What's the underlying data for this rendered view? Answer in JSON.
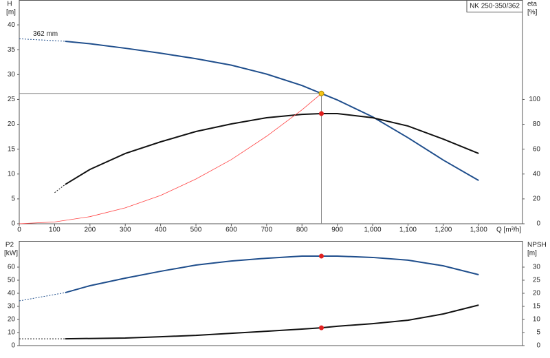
{
  "chart_data": [
    {
      "type": "line",
      "label_box": "NK 250-350/362",
      "annotation": "362 mm",
      "y_label": "H",
      "y_unit": "[m]",
      "y2_label": "eta",
      "y2_unit": "[%]",
      "x_label": "Q [m³/h]",
      "xlim": [
        0,
        1424
      ],
      "xticks": [
        0,
        100,
        200,
        300,
        400,
        500,
        600,
        700,
        800,
        900,
        {
          "value": 1000,
          "label": "1,000"
        },
        {
          "value": 1100,
          "label": "1,100"
        },
        {
          "value": 1200,
          "label": "1,200"
        },
        {
          "value": 1300,
          "label": "1,300"
        }
      ],
      "ylim": [
        0,
        45
      ],
      "yticks": [
        0,
        5,
        10,
        15,
        20,
        25,
        30,
        35,
        40
      ],
      "y2lim": [
        0,
        180
      ],
      "y2ticks": [
        0,
        20,
        40,
        60,
        80,
        100
      ],
      "series": [
        {
          "color": "#1f4e8c",
          "style": "dashed",
          "x": [
            0,
            130
          ],
          "values": [
            37.2,
            36.7
          ]
        },
        {
          "color": "#1f4e8c",
          "style": "solid",
          "x": [
            130,
            200,
            300,
            400,
            500,
            600,
            700,
            800,
            855,
            900,
            1000,
            1100,
            1200,
            1300
          ],
          "values": [
            36.7,
            36.2,
            35.3,
            34.3,
            33.2,
            31.9,
            30.1,
            27.8,
            26.2,
            24.9,
            21.5,
            17.3,
            12.8,
            8.7
          ]
        },
        {
          "color": "#111111",
          "style": "dashed",
          "axis": "y2",
          "x": [
            100,
            130
          ],
          "values": [
            25,
            31.6
          ]
        },
        {
          "color": "#111111",
          "style": "solid",
          "axis": "y2",
          "x": [
            130,
            200,
            300,
            400,
            500,
            600,
            700,
            800,
            855,
            900,
            1000,
            1100,
            1200,
            1300
          ],
          "values": [
            31.6,
            43.7,
            56.5,
            65.9,
            74.2,
            80.3,
            85.3,
            88,
            88.6,
            88.6,
            85.3,
            78.6,
            68.1,
            56.5
          ]
        },
        {
          "color": "#ff4040",
          "style": "thin",
          "x": [
            0,
            100,
            200,
            300,
            400,
            500,
            600,
            700,
            800,
            855
          ],
          "values": [
            0,
            0.36,
            1.43,
            3.2,
            5.7,
            9,
            12.9,
            17.6,
            22.9,
            26.2
          ]
        }
      ],
      "markers": [
        {
          "x": 855,
          "y": 26.2,
          "color": "#f5c518"
        },
        {
          "x": 855,
          "y": 88.6,
          "axis": "y2",
          "color": "#e02020"
        }
      ]
    },
    {
      "type": "line",
      "y_label": "P2",
      "y_unit": "[kW]",
      "y2_label": "NPSH",
      "y2_unit": "[m]",
      "xlim": [
        0,
        1424
      ],
      "ylim": [
        0,
        80
      ],
      "yticks": [
        0,
        10,
        20,
        30,
        40,
        50,
        60
      ],
      "y2lim": [
        0,
        40
      ],
      "y2ticks": [
        0,
        5,
        10,
        15,
        20,
        25,
        30
      ],
      "series": [
        {
          "color": "#1f4e8c",
          "style": "dashed",
          "x": [
            0,
            130
          ],
          "values": [
            34.2,
            40.5
          ]
        },
        {
          "color": "#1f4e8c",
          "style": "solid",
          "x": [
            130,
            200,
            300,
            400,
            500,
            600,
            700,
            800,
            855,
            900,
            1000,
            1100,
            1200,
            1300
          ],
          "values": [
            40.5,
            45.8,
            51.6,
            56.8,
            61.6,
            64.7,
            66.8,
            68.4,
            68.4,
            68.4,
            67.4,
            65.3,
            61,
            54.2
          ]
        },
        {
          "color": "#111111",
          "style": "dashed",
          "axis": "y2",
          "x": [
            0,
            130
          ],
          "values": [
            2.6,
            2.6
          ]
        },
        {
          "color": "#111111",
          "style": "solid",
          "axis": "y2",
          "x": [
            130,
            300,
            400,
            500,
            600,
            700,
            800,
            855,
            900,
            1000,
            1100,
            1200,
            1300
          ],
          "values": [
            2.6,
            2.9,
            3.4,
            3.9,
            4.7,
            5.5,
            6.3,
            6.8,
            7.4,
            8.4,
            9.7,
            12.1,
            15.5
          ]
        }
      ],
      "markers": [
        {
          "x": 855,
          "y": 68.4,
          "color": "#e02020"
        },
        {
          "x": 855,
          "y": 6.8,
          "axis": "y2",
          "color": "#e02020"
        }
      ]
    }
  ]
}
